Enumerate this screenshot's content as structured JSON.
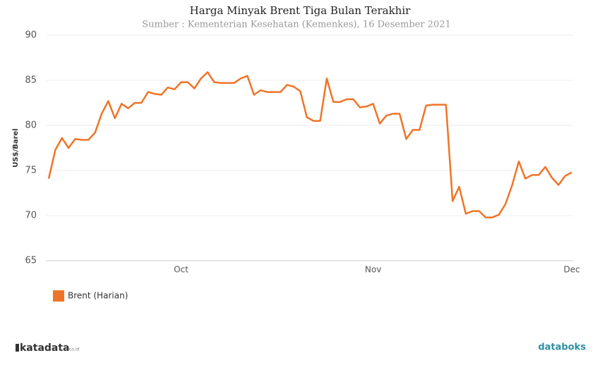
{
  "chart_data": {
    "type": "line",
    "title": "Harga Minyak Brent Tiga Bulan Terakhir",
    "subtitle": "Sumber : Kementerian Kesehatan (Kemenkes), 16 Desember 2021",
    "y_label": "US$/Barel",
    "categories": [
      null,
      null,
      null,
      null,
      null,
      null,
      null,
      null,
      null,
      null,
      null,
      null,
      null,
      null,
      null,
      null,
      null,
      null,
      null,
      null,
      "Oct",
      null,
      null,
      null,
      null,
      null,
      null,
      null,
      null,
      null,
      null,
      null,
      null,
      null,
      null,
      null,
      null,
      null,
      null,
      null,
      null,
      null,
      null,
      null,
      null,
      null,
      null,
      null,
      null,
      "Nov",
      null,
      null,
      null,
      null,
      null,
      null,
      null,
      null,
      null,
      null,
      null,
      null,
      null,
      null,
      null,
      null,
      null,
      null,
      null,
      null,
      null,
      null,
      null,
      null,
      null,
      null,
      null,
      null,
      null,
      "Dec"
    ],
    "series": [
      {
        "name": "Brent (Harian)",
        "color": "#f07427",
        "values": [
          74.1,
          77.3,
          78.6,
          77.5,
          78.5,
          78.4,
          78.4,
          79.2,
          81.3,
          82.7,
          80.8,
          82.4,
          81.9,
          82.5,
          82.5,
          83.7,
          83.5,
          83.4,
          84.2,
          84.0,
          84.8,
          84.8,
          84.1,
          85.2,
          85.9,
          84.8,
          84.7,
          84.7,
          84.7,
          85.2,
          85.5,
          83.4,
          83.9,
          83.7,
          83.7,
          83.7,
          84.5,
          84.3,
          83.8,
          80.9,
          80.5,
          80.5,
          85.2,
          82.6,
          82.6,
          82.9,
          82.9,
          82.0,
          82.1,
          82.4,
          80.2,
          81.1,
          81.3,
          81.3,
          78.5,
          79.5,
          79.5,
          82.2,
          82.3,
          82.3,
          82.3,
          71.6,
          73.2,
          70.2,
          70.5,
          70.5,
          69.8,
          69.8,
          70.1,
          71.3,
          73.4,
          76.0,
          74.1,
          74.5,
          74.5,
          75.4,
          74.2,
          73.4,
          74.4,
          74.8
        ]
      }
    ],
    "ylim": [
      65,
      90
    ],
    "yticks": [
      65,
      70,
      75,
      80,
      85,
      90
    ],
    "grid": true,
    "legend": "bottom-left"
  },
  "footer": {
    "left": "katadata",
    "left_suffix": ".co.id",
    "right": "databoks"
  }
}
